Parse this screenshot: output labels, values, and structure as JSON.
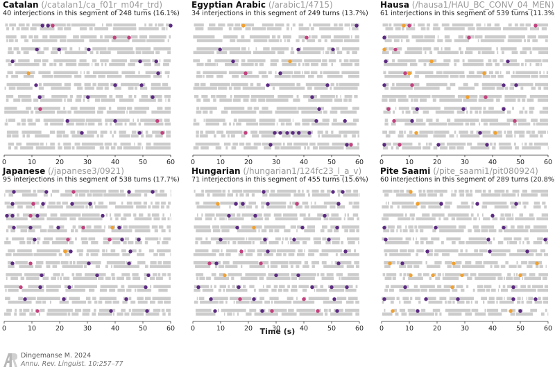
{
  "chart_data": [
    {
      "type": "scatter",
      "language": "Catalan",
      "path": "(/catalan1/ca_f01r_m04r_trd)",
      "subtitle": "40 interjections in this segment of 248 turns (16.1%)",
      "xlim": [
        0,
        60
      ],
      "xticks": [
        0,
        10,
        20,
        30,
        40,
        50,
        60
      ],
      "rows": 11,
      "seed": 11,
      "points": [
        [
          1,
          13.8,
          "purple"
        ],
        [
          1,
          15.8,
          "purple"
        ],
        [
          1,
          17.5,
          "magenta"
        ],
        [
          1,
          60.0,
          "purple"
        ],
        [
          2,
          39.8,
          "magenta"
        ],
        [
          2,
          45.0,
          "magenta"
        ],
        [
          3,
          11.8,
          "purple"
        ],
        [
          3,
          19.8,
          "purple"
        ],
        [
          3,
          30.5,
          "purple"
        ],
        [
          4,
          3.0,
          "purple"
        ],
        [
          4,
          49.0,
          "purple"
        ],
        [
          4,
          54.8,
          "purple"
        ],
        [
          5,
          8.8,
          "orange"
        ],
        [
          5,
          55.5,
          "purple"
        ],
        [
          6,
          11.5,
          "purple"
        ],
        [
          6,
          40.0,
          "purple"
        ],
        [
          6,
          49.5,
          "purple"
        ],
        [
          7,
          12.8,
          "purple"
        ],
        [
          7,
          30.2,
          "purple"
        ],
        [
          7,
          53.5,
          "purple"
        ],
        [
          8,
          13.0,
          "magenta"
        ],
        [
          9,
          22.8,
          "purple"
        ],
        [
          9,
          40.0,
          "purple"
        ],
        [
          9,
          55.2,
          "magenta"
        ],
        [
          10,
          28.0,
          "purple"
        ],
        [
          10,
          48.8,
          "purple"
        ],
        [
          10,
          57.0,
          "magenta"
        ]
      ]
    },
    {
      "type": "scatter",
      "language": "Egyptian Arabic",
      "path": "(/arabic1/4715)",
      "subtitle": "34 interjections in this segment of 249 turns (13.7%)",
      "xlim": [
        0,
        60
      ],
      "xticks": [
        0,
        10,
        20,
        30,
        40,
        50,
        60
      ],
      "rows": 11,
      "seed": 23,
      "points": [
        [
          1,
          18.2,
          "orange"
        ],
        [
          1,
          59.0,
          "purple"
        ],
        [
          2,
          41.0,
          "magenta"
        ],
        [
          3,
          9.8,
          "purple"
        ],
        [
          3,
          38.0,
          "purple"
        ],
        [
          3,
          50.5,
          "purple"
        ],
        [
          4,
          14.5,
          "purple"
        ],
        [
          4,
          35.0,
          "orange"
        ],
        [
          5,
          19.0,
          "magenta"
        ],
        [
          5,
          31.5,
          "purple"
        ],
        [
          6,
          27.0,
          "purple"
        ],
        [
          6,
          48.5,
          "purple"
        ],
        [
          7,
          43.0,
          "purple"
        ],
        [
          8,
          45.5,
          "purple"
        ],
        [
          9,
          44.5,
          "purple"
        ],
        [
          9,
          54.8,
          "purple"
        ],
        [
          10,
          19.0,
          "magenta"
        ],
        [
          10,
          29.5,
          "purple"
        ],
        [
          10,
          31.5,
          "purple"
        ],
        [
          10,
          34.0,
          "purple"
        ],
        [
          10,
          36.0,
          "purple"
        ],
        [
          10,
          38.2,
          "purple"
        ],
        [
          10,
          42.0,
          "purple"
        ],
        [
          11,
          28.0,
          "purple"
        ],
        [
          11,
          55.5,
          "purple"
        ],
        [
          11,
          57.0,
          "magenta"
        ]
      ]
    },
    {
      "type": "scatter",
      "language": "Hausa",
      "path": "(/hausa1/HAU_BC_CONV_04_MEN)",
      "subtitle": "61 interjections in this segment of 539 turns (11.3%)",
      "xlim": [
        0,
        60
      ],
      "xticks": [
        0,
        10,
        20,
        30,
        40,
        50,
        60
      ],
      "rows": 11,
      "seed": 37,
      "points": [
        [
          1,
          8.0,
          "orange"
        ],
        [
          1,
          10.0,
          "magenta"
        ],
        [
          1,
          55.5,
          "magenta"
        ],
        [
          2,
          1.0,
          "purple"
        ],
        [
          2,
          31.5,
          "magenta"
        ],
        [
          3,
          1.0,
          "orange"
        ],
        [
          3,
          5.0,
          "magenta"
        ],
        [
          4,
          1.5,
          "purple"
        ],
        [
          4,
          18.0,
          "orange"
        ],
        [
          4,
          45.5,
          "purple"
        ],
        [
          5,
          8.5,
          "magenta"
        ],
        [
          5,
          10.0,
          "orange"
        ],
        [
          5,
          37.0,
          "orange"
        ],
        [
          6,
          1.0,
          "purple"
        ],
        [
          6,
          11.0,
          "magenta"
        ],
        [
          6,
          44.0,
          "purple"
        ],
        [
          6,
          48.5,
          "purple"
        ],
        [
          7,
          31.0,
          "orange"
        ],
        [
          7,
          37.5,
          "magenta"
        ],
        [
          8,
          2.5,
          "magenta"
        ],
        [
          8,
          12.8,
          "purple"
        ],
        [
          8,
          29.5,
          "purple"
        ],
        [
          8,
          44.0,
          "purple"
        ],
        [
          9,
          4.5,
          "magenta"
        ],
        [
          9,
          11.0,
          "purple"
        ],
        [
          9,
          48.0,
          "magenta"
        ],
        [
          10,
          12.5,
          "orange"
        ],
        [
          10,
          35.5,
          "purple"
        ],
        [
          10,
          41.0,
          "orange"
        ],
        [
          11,
          1.0,
          "purple"
        ],
        [
          11,
          6.5,
          "magenta"
        ],
        [
          11,
          20.5,
          "purple"
        ],
        [
          11,
          38.0,
          "purple"
        ]
      ]
    },
    {
      "type": "scatter",
      "language": "Japanese",
      "path": "(/japanese3/0921)",
      "subtitle": "95 interjections in this segment of 538 turns (17.7%)",
      "xlim": [
        0,
        60
      ],
      "xticks": [
        0,
        10,
        20,
        30,
        40,
        50,
        60
      ],
      "rows": 11,
      "seed": 41,
      "points": [
        [
          1,
          3.5,
          "purple"
        ],
        [
          1,
          15.2,
          "purple"
        ],
        [
          1,
          25.0,
          "magenta"
        ],
        [
          1,
          45.0,
          "purple"
        ],
        [
          1,
          53.5,
          "purple"
        ],
        [
          2,
          3.0,
          "purple"
        ],
        [
          2,
          10.5,
          "magenta"
        ],
        [
          2,
          14.0,
          "purple"
        ],
        [
          2,
          24.5,
          "purple"
        ],
        [
          2,
          31.0,
          "purple"
        ],
        [
          3,
          1.0,
          "purple"
        ],
        [
          3,
          3.0,
          "purple"
        ],
        [
          3,
          9.5,
          "magenta"
        ],
        [
          3,
          12.0,
          "purple"
        ],
        [
          3,
          35.5,
          "purple"
        ],
        [
          4,
          3.5,
          "purple"
        ],
        [
          4,
          9.5,
          "purple"
        ],
        [
          4,
          19.5,
          "purple"
        ],
        [
          4,
          28.5,
          "magenta"
        ],
        [
          4,
          39.0,
          "orange"
        ],
        [
          4,
          41.5,
          "purple"
        ],
        [
          5,
          11.0,
          "purple"
        ],
        [
          5,
          23.0,
          "magenta"
        ],
        [
          5,
          38.0,
          "magenta"
        ],
        [
          5,
          42.5,
          "purple"
        ],
        [
          5,
          48.5,
          "purple"
        ],
        [
          6,
          22.0,
          "orange"
        ],
        [
          6,
          24.0,
          "purple"
        ],
        [
          6,
          45.5,
          "purple"
        ],
        [
          7,
          3.0,
          "purple"
        ],
        [
          7,
          9.5,
          "magenta"
        ],
        [
          7,
          30.5,
          "purple"
        ],
        [
          7,
          45.0,
          "purple"
        ],
        [
          8,
          13.5,
          "purple"
        ],
        [
          8,
          33.5,
          "purple"
        ],
        [
          8,
          52.0,
          "purple"
        ],
        [
          9,
          6.0,
          "magenta"
        ],
        [
          9,
          13.0,
          "purple"
        ],
        [
          9,
          23.5,
          "purple"
        ],
        [
          9,
          51.0,
          "purple"
        ],
        [
          10,
          7.5,
          "purple"
        ],
        [
          10,
          21.5,
          "purple"
        ],
        [
          10,
          44.0,
          "purple"
        ],
        [
          11,
          12.0,
          "magenta"
        ],
        [
          11,
          38.5,
          "purple"
        ],
        [
          11,
          51.5,
          "purple"
        ]
      ]
    },
    {
      "type": "scatter",
      "language": "Hungarian",
      "path": "(/hungarian1/124fc23_l_a_v)",
      "subtitle": "71 interjections in this segment of 455 turns (15.6%)",
      "xlim": [
        0,
        60
      ],
      "xticks": [
        0,
        10,
        20,
        30,
        40,
        50,
        60
      ],
      "rows": 11,
      "seed": 53,
      "points": [
        [
          1,
          25.5,
          "purple"
        ],
        [
          1,
          50.5,
          "purple"
        ],
        [
          1,
          54.0,
          "purple"
        ],
        [
          2,
          9.0,
          "orange"
        ],
        [
          2,
          15.5,
          "purple"
        ],
        [
          2,
          18.0,
          "purple"
        ],
        [
          2,
          27.0,
          "purple"
        ],
        [
          2,
          37.5,
          "magenta"
        ],
        [
          2,
          52.5,
          "purple"
        ],
        [
          3,
          13.0,
          "purple"
        ],
        [
          3,
          22.5,
          "purple"
        ],
        [
          3,
          47.5,
          "purple"
        ],
        [
          4,
          16.0,
          "purple"
        ],
        [
          4,
          22.0,
          "orange"
        ],
        [
          4,
          39.5,
          "purple"
        ],
        [
          4,
          52.0,
          "purple"
        ],
        [
          5,
          10.0,
          "purple"
        ],
        [
          5,
          26.0,
          "purple"
        ],
        [
          5,
          36.5,
          "purple"
        ],
        [
          5,
          49.0,
          "purple"
        ],
        [
          6,
          17.5,
          "magenta"
        ],
        [
          6,
          27.0,
          "purple"
        ],
        [
          6,
          55.0,
          "purple"
        ],
        [
          7,
          6.0,
          "magenta"
        ],
        [
          7,
          8.5,
          "purple"
        ],
        [
          7,
          24.5,
          "magenta"
        ],
        [
          7,
          52.5,
          "purple"
        ],
        [
          8,
          11.5,
          "orange"
        ],
        [
          8,
          30.0,
          "purple"
        ],
        [
          8,
          38.0,
          "purple"
        ],
        [
          9,
          2.0,
          "purple"
        ],
        [
          9,
          16.5,
          "purple"
        ],
        [
          9,
          43.0,
          "purple"
        ],
        [
          9,
          50.0,
          "purple"
        ],
        [
          9,
          55.5,
          "purple"
        ],
        [
          10,
          6.5,
          "purple"
        ],
        [
          10,
          17.0,
          "magenta"
        ],
        [
          10,
          22.0,
          "purple"
        ],
        [
          10,
          40.0,
          "magenta"
        ],
        [
          10,
          51.0,
          "purple"
        ],
        [
          11,
          8.0,
          "purple"
        ],
        [
          11,
          25.0,
          "purple"
        ],
        [
          11,
          28.5,
          "magenta"
        ],
        [
          11,
          45.0,
          "magenta"
        ],
        [
          11,
          52.0,
          "purple"
        ]
      ]
    },
    {
      "type": "scatter",
      "language": "Pite Saami",
      "path": "(/pite_saami1/pit080924)",
      "subtitle": "60 interjections in this segment of 289 turns (20.8%)",
      "xlim": [
        0,
        60
      ],
      "xticks": [
        0,
        10,
        20,
        30,
        40,
        50,
        60
      ],
      "rows": 11,
      "seed": 67,
      "points": [
        [
          1,
          10.5,
          "orange"
        ],
        [
          2,
          13.0,
          "orange"
        ],
        [
          2,
          21.5,
          "purple"
        ],
        [
          2,
          34.5,
          "purple"
        ],
        [
          2,
          48.5,
          "purple"
        ],
        [
          3,
          40.0,
          "purple"
        ],
        [
          4,
          1.0,
          "purple"
        ],
        [
          4,
          19.5,
          "purple"
        ],
        [
          4,
          44.0,
          "purple"
        ],
        [
          5,
          1.5,
          "purple"
        ],
        [
          5,
          38.5,
          "purple"
        ],
        [
          5,
          59.0,
          "purple"
        ],
        [
          6,
          16.5,
          "purple"
        ],
        [
          6,
          39.0,
          "purple"
        ],
        [
          6,
          52.5,
          "purple"
        ],
        [
          7,
          3.0,
          "orange"
        ],
        [
          7,
          7.5,
          "purple"
        ],
        [
          7,
          26.0,
          "orange"
        ],
        [
          7,
          56.0,
          "orange"
        ],
        [
          8,
          10.5,
          "orange"
        ],
        [
          8,
          18.5,
          "orange"
        ],
        [
          8,
          29.0,
          "orange"
        ],
        [
          8,
          50.0,
          "orange"
        ],
        [
          9,
          8.5,
          "purple"
        ],
        [
          9,
          25.5,
          "orange"
        ],
        [
          9,
          47.5,
          "purple"
        ],
        [
          10,
          1.0,
          "purple"
        ],
        [
          10,
          16.0,
          "purple"
        ],
        [
          10,
          27.5,
          "purple"
        ],
        [
          10,
          47.5,
          "purple"
        ],
        [
          10,
          55.5,
          "purple"
        ],
        [
          11,
          4.0,
          "orange"
        ],
        [
          11,
          13.0,
          "purple"
        ],
        [
          11,
          46.5,
          "orange"
        ],
        [
          11,
          50.0,
          "purple"
        ]
      ]
    }
  ],
  "xlabel": "Time (s)",
  "colors": {
    "purple": "#5c2a82",
    "magenta": "#c2417e",
    "orange": "#f0a130",
    "bar": "#cccccc"
  },
  "footer": {
    "author": "Dingemanse M. 2024",
    "reference": "Annu. Rev. Linguist. 10:257–77",
    "logo_icon": "annual-reviews-logo-icon"
  }
}
